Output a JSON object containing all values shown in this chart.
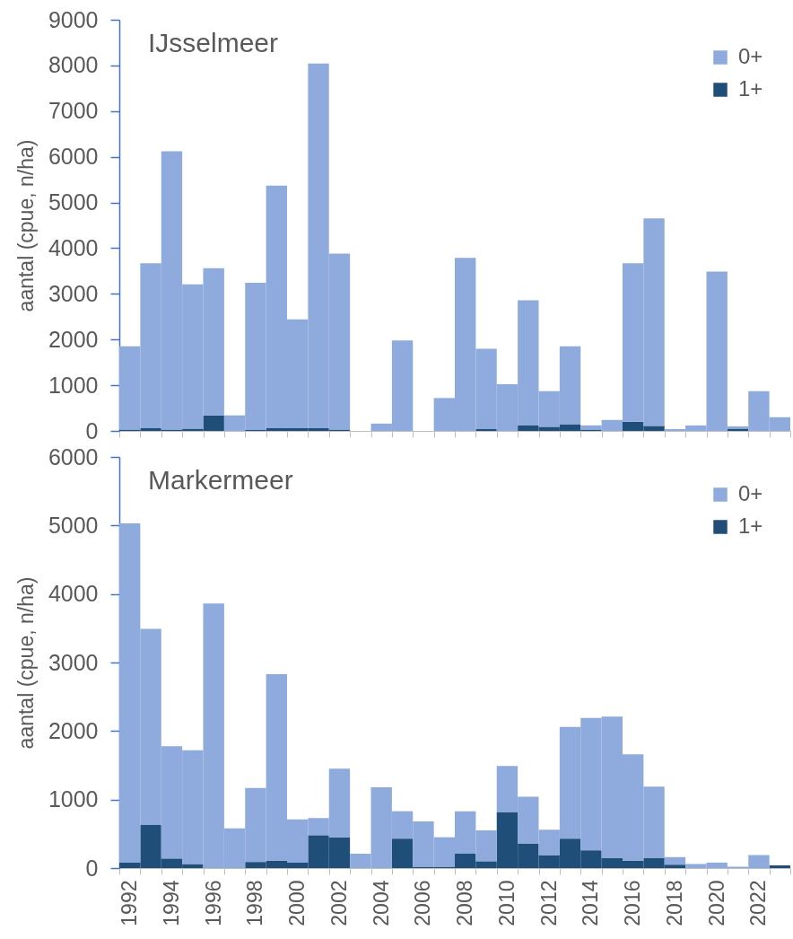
{
  "chart_data": [
    {
      "type": "bar",
      "title": "IJsselmeer",
      "ylabel": "aantal (cpue, n/ha)",
      "stacked": true,
      "legend": "top right",
      "tick_labels": "y",
      "categories": [
        "1992",
        null,
        "1994",
        null,
        "1996",
        null,
        "1998",
        null,
        "2000",
        null,
        "2002",
        null,
        "2004",
        null,
        "2006",
        null,
        "2008",
        null,
        "2010",
        null,
        "2012",
        null,
        "2014",
        null,
        "2016",
        null,
        "2018",
        null,
        "2020",
        null,
        "2022",
        null
      ],
      "series": [
        {
          "name": "1+",
          "color": "#1f4e79",
          "values": [
            30,
            60,
            30,
            50,
            340,
            null,
            20,
            60,
            60,
            60,
            30,
            null,
            null,
            null,
            null,
            null,
            null,
            40,
            null,
            120,
            90,
            140,
            30,
            null,
            200,
            110,
            null,
            null,
            null,
            50,
            null,
            null
          ]
        },
        {
          "name": "0+",
          "color": "#8faadc",
          "values": [
            1820,
            3610,
            6090,
            3160,
            3220,
            340,
            3220,
            5310,
            2380,
            7980,
            3850,
            null,
            160,
            1980,
            null,
            720,
            3790,
            1760,
            1020,
            2740,
            780,
            1710,
            90,
            240,
            3470,
            4540,
            40,
            120,
            3490,
            50,
            870,
            300
          ]
        }
      ],
      "ylim": [
        0,
        9000
      ],
      "yticks": [
        0,
        1000,
        2000,
        3000,
        4000,
        5000,
        6000,
        7000,
        8000,
        9000
      ]
    },
    {
      "type": "bar",
      "title": "Markermeer",
      "ylabel": "aantal (cpue, n/ha)",
      "stacked": true,
      "legend": "top right",
      "categories": [
        "1992",
        null,
        "1994",
        null,
        "1996",
        null,
        "1998",
        null,
        "2000",
        null,
        "2002",
        null,
        "2004",
        null,
        "2006",
        null,
        "2008",
        null,
        "2010",
        null,
        "2012",
        null,
        "2014",
        null,
        "2016",
        null,
        "2018",
        null,
        "2020",
        null,
        "2022",
        null
      ],
      "series": [
        {
          "name": "1+",
          "color": "#1f4e79",
          "values": [
            80,
            630,
            140,
            60,
            null,
            null,
            90,
            110,
            80,
            480,
            450,
            null,
            null,
            430,
            20,
            20,
            210,
            100,
            820,
            360,
            190,
            430,
            260,
            150,
            110,
            150,
            50,
            null,
            null,
            null,
            null,
            40
          ]
        },
        {
          "name": "0+",
          "color": "#8faadc",
          "values": [
            4950,
            2860,
            1640,
            1660,
            3860,
            580,
            1080,
            2720,
            630,
            250,
            1000,
            210,
            1180,
            400,
            660,
            430,
            620,
            450,
            670,
            680,
            370,
            1630,
            1930,
            2060,
            1550,
            1040,
            110,
            60,
            80,
            20,
            190,
            null
          ]
        }
      ],
      "ylim": [
        0,
        6000
      ],
      "yticks": [
        0,
        1000,
        2000,
        3000,
        4000,
        5000,
        6000
      ]
    }
  ]
}
